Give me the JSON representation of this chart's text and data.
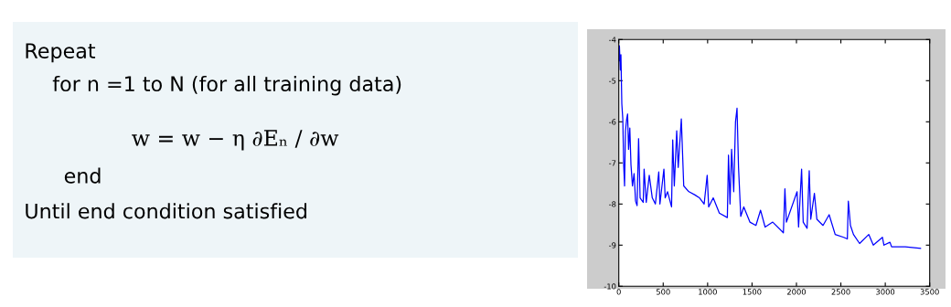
{
  "chart_data": [
    {
      "type": "other",
      "annotations": [
        "Repeat",
        "for n =1 to N (for all training data)",
        "w = w − η ∂Eₙ / ∂w",
        "end",
        "Until end condition satisfied"
      ]
    },
    {
      "type": "line",
      "xlim": [
        0,
        3500
      ],
      "ylim": [
        -10,
        -4
      ],
      "xticks": [
        0,
        500,
        1000,
        1500,
        2000,
        2500,
        3000,
        3500
      ],
      "yticks": [
        -10,
        -9,
        -8,
        -7,
        -6,
        -5,
        -4
      ],
      "grid": false,
      "marker": "none",
      "line_style": "solid",
      "x": [
        0,
        7,
        17,
        24,
        34,
        45,
        55,
        65,
        75,
        89,
        99,
        110,
        124,
        137,
        154,
        172,
        189,
        206,
        223,
        240,
        275,
        285,
        309,
        343,
        377,
        412,
        450,
        463,
        508,
        522,
        549,
        594,
        607,
        625,
        652,
        669,
        704,
        731,
        789,
        858,
        909,
        961,
        995,
        1012,
        1063,
        1132,
        1222,
        1235,
        1252,
        1270,
        1294,
        1314,
        1331,
        1348,
        1373,
        1407,
        1476,
        1544,
        1596,
        1647,
        1733,
        1853,
        1870,
        1887,
        2007,
        2024,
        2058,
        2076,
        2120,
        2144,
        2161,
        2202,
        2230,
        2299,
        2368,
        2436,
        2532,
        2573,
        2584,
        2608,
        2642,
        2711,
        2814,
        2865,
        2968,
        2985,
        3053,
        3071,
        3225,
        3397
      ],
      "series": [
        {
          "color": "#0000ff",
          "values": [
            -4.52,
            -4.15,
            -4.74,
            -4.37,
            -5.56,
            -5.93,
            -7.04,
            -7.56,
            -6.22,
            -5.93,
            -5.81,
            -6.67,
            -6.15,
            -7.04,
            -7.56,
            -7.26,
            -7.93,
            -8.04,
            -6.41,
            -7.85,
            -7.96,
            -7.15,
            -7.96,
            -7.3,
            -7.85,
            -8.0,
            -7.22,
            -8.0,
            -7.15,
            -7.85,
            -7.7,
            -8.07,
            -6.44,
            -7.56,
            -6.22,
            -7.11,
            -5.93,
            -7.56,
            -7.7,
            -7.78,
            -7.85,
            -8.0,
            -7.3,
            -8.07,
            -7.85,
            -8.22,
            -8.33,
            -6.81,
            -8.0,
            -6.67,
            -7.7,
            -6.0,
            -5.67,
            -7.11,
            -8.3,
            -8.07,
            -8.44,
            -8.52,
            -8.15,
            -8.56,
            -8.44,
            -8.7,
            -7.63,
            -8.44,
            -7.7,
            -8.56,
            -7.15,
            -8.44,
            -8.59,
            -7.19,
            -8.37,
            -7.74,
            -8.37,
            -8.52,
            -8.26,
            -8.74,
            -8.81,
            -8.85,
            -7.93,
            -8.52,
            -8.74,
            -8.96,
            -8.74,
            -9.0,
            -8.81,
            -9.0,
            -8.93,
            -9.04,
            -9.04,
            -9.08
          ]
        }
      ]
    }
  ]
}
